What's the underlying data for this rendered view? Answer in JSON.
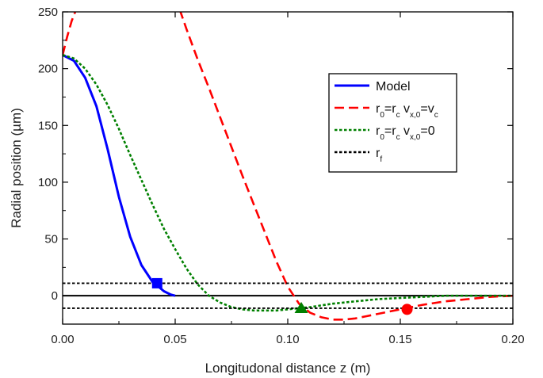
{
  "chart_data": {
    "type": "line",
    "title": "",
    "xlabel": "Longitudonal distance z (m)",
    "ylabel": "Radial position (µm)",
    "xlim": [
      0.0,
      0.2
    ],
    "ylim": [
      -25,
      250
    ],
    "x_ticks": [
      0.0,
      0.05,
      0.1,
      0.15,
      0.2
    ],
    "x_tick_labels": [
      "0.00",
      "0.05",
      "0.10",
      "0.15",
      "0.20"
    ],
    "y_ticks": [
      0,
      50,
      100,
      150,
      200,
      250
    ],
    "y_tick_labels": [
      "0",
      "50",
      "100",
      "150",
      "200",
      "250"
    ],
    "grid": false,
    "legend_position": "right",
    "series": [
      {
        "key": "model",
        "legend_label": "Model",
        "color": "#0000ff",
        "style": "solid",
        "x": [
          0.0,
          0.005,
          0.01,
          0.015,
          0.02,
          0.025,
          0.03,
          0.035,
          0.04,
          0.042,
          0.045,
          0.048,
          0.05
        ],
        "y": [
          212,
          207,
          192,
          167,
          129,
          87,
          52,
          27,
          12,
          9,
          4,
          1,
          0
        ],
        "end_marker": {
          "shape": "square",
          "x": 0.042,
          "y": 11
        }
      },
      {
        "key": "r0_vc",
        "legend_parts": [
          {
            "text": "r",
            "sub": "0"
          },
          {
            "text": "=r",
            "sub": "c"
          },
          {
            "text": " v",
            "sub": "x,0"
          },
          {
            "text": "=v",
            "sub": "c"
          }
        ],
        "color": "#ff0000",
        "style": "dashed",
        "segments": [
          {
            "x": [
              0.0,
              0.002,
              0.004,
              0.006
            ],
            "y": [
              212,
              228,
              242,
              252
            ]
          },
          {
            "x": [
              0.052,
              0.055,
              0.06,
              0.065,
              0.07,
              0.075,
              0.08,
              0.085,
              0.09,
              0.095,
              0.1,
              0.105,
              0.11,
              0.115,
              0.12,
              0.125,
              0.13,
              0.135,
              0.14,
              0.145,
              0.15,
              0.16,
              0.17,
              0.18,
              0.19,
              0.2
            ],
            "y": [
              252,
              235,
              208,
              183,
              157,
              131,
              105,
              80,
              55,
              30,
              8,
              -7,
              -15,
              -19,
              -21,
              -21,
              -20,
              -18,
              -16,
              -14,
              -12,
              -8,
              -5,
              -3,
              -1,
              0
            ]
          }
        ],
        "end_marker": {
          "shape": "circle",
          "x": 0.153,
          "y": -12
        }
      },
      {
        "key": "r0_zero",
        "legend_parts": [
          {
            "text": "r",
            "sub": "0"
          },
          {
            "text": "=r",
            "sub": "c"
          },
          {
            "text": " v",
            "sub": "x,0"
          },
          {
            "text": "=0",
            "sub": ""
          }
        ],
        "color": "#008000",
        "style": "dotted",
        "x": [
          0.0,
          0.005,
          0.01,
          0.015,
          0.02,
          0.025,
          0.03,
          0.035,
          0.04,
          0.045,
          0.05,
          0.055,
          0.06,
          0.065,
          0.07,
          0.075,
          0.08,
          0.085,
          0.09,
          0.095,
          0.1,
          0.105,
          0.11,
          0.12,
          0.13,
          0.14,
          0.15,
          0.16,
          0.17,
          0.18,
          0.19,
          0.2
        ],
        "y": [
          212,
          209,
          200,
          186,
          168,
          147,
          124,
          102,
          80,
          59,
          41,
          24,
          10,
          0,
          -6,
          -10,
          -12,
          -13,
          -13,
          -13,
          -12,
          -11,
          -10,
          -7,
          -5,
          -3,
          -2,
          -1,
          0,
          0,
          0,
          0
        ],
        "end_marker": {
          "shape": "triangle",
          "x": 0.106,
          "y": -11
        }
      },
      {
        "key": "rf",
        "legend_parts": [
          {
            "text": "r",
            "sub": "f"
          }
        ],
        "color": "#000000",
        "style": "dotted",
        "hlines": [
          11,
          -11
        ]
      }
    ],
    "reference_lines": [
      {
        "y": 0,
        "color": "#000000",
        "style": "solid"
      }
    ]
  }
}
